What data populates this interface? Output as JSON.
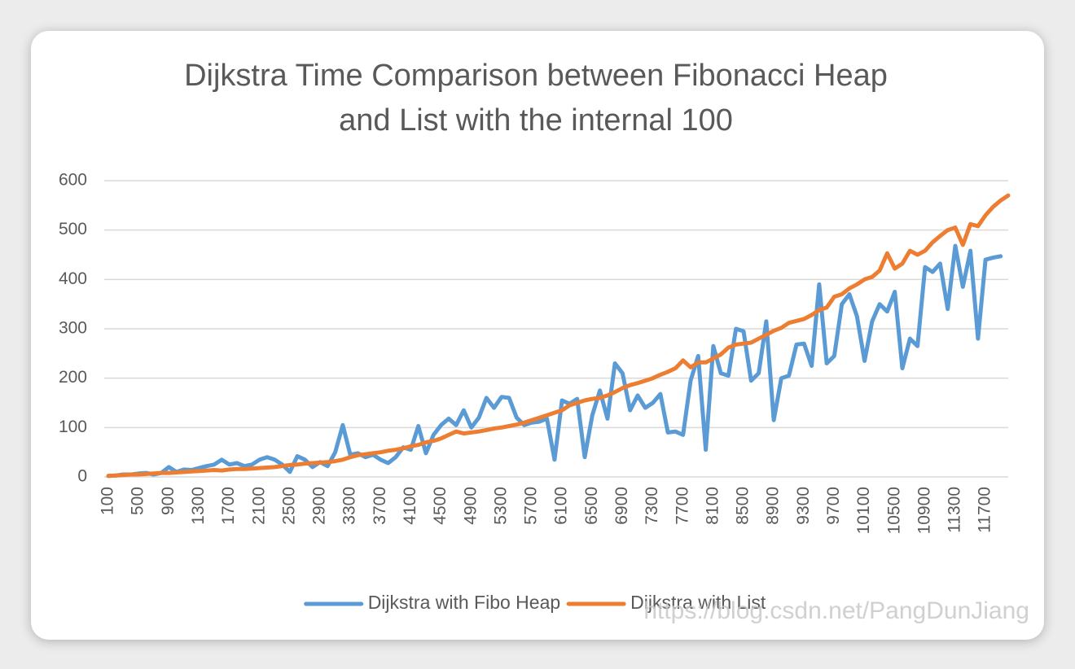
{
  "chart_data": {
    "type": "line",
    "title": [
      "Dijkstra Time Comparison between Fibonacci Heap",
      "and List with the internal 100"
    ],
    "categories": [
      "100",
      null,
      null,
      null,
      "500",
      null,
      null,
      null,
      "900",
      null,
      null,
      null,
      "1300",
      null,
      null,
      null,
      "1700",
      null,
      null,
      null,
      "2100",
      null,
      null,
      null,
      "2500",
      null,
      null,
      null,
      "2900",
      null,
      null,
      null,
      "3300",
      null,
      null,
      null,
      "3700",
      null,
      null,
      null,
      "4100",
      null,
      null,
      null,
      "4500",
      null,
      null,
      null,
      "4900",
      null,
      null,
      null,
      "5300",
      null,
      null,
      null,
      "5700",
      null,
      null,
      null,
      "6100",
      null,
      null,
      null,
      "6500",
      null,
      null,
      null,
      "6900",
      null,
      null,
      null,
      "7300",
      null,
      null,
      null,
      "7700",
      null,
      null,
      null,
      "8100",
      null,
      null,
      null,
      "8500",
      null,
      null,
      null,
      "8900",
      null,
      null,
      null,
      "9300",
      null,
      null,
      null,
      "9700",
      null,
      null,
      null,
      "10100",
      null,
      null,
      null,
      "10500",
      null,
      null,
      null,
      "10900",
      null,
      null,
      null,
      "11300",
      null,
      null,
      null,
      "11700",
      null,
      null,
      null
    ],
    "series": [
      {
        "name": "Dijkstra with Fibo Heap",
        "color": "#5b9bd5",
        "values": [
          2,
          3,
          5,
          5,
          7,
          8,
          5,
          8,
          20,
          10,
          15,
          14,
          18,
          22,
          25,
          35,
          25,
          28,
          22,
          25,
          35,
          40,
          35,
          25,
          10,
          42,
          35,
          20,
          30,
          22,
          50,
          105,
          45,
          48,
          40,
          45,
          35,
          28,
          40,
          60,
          55,
          103,
          48,
          85,
          105,
          118,
          105,
          135,
          100,
          120,
          160,
          140,
          162,
          160,
          120,
          105,
          110,
          112,
          118,
          35,
          155,
          148,
          158,
          40,
          125,
          175,
          118,
          230,
          210,
          135,
          165,
          140,
          150,
          168,
          90,
          92,
          85,
          195,
          245,
          55,
          265,
          210,
          205,
          300,
          295,
          195,
          210,
          315,
          115,
          200,
          205,
          268,
          270,
          225,
          390,
          230,
          245,
          350,
          370,
          325,
          235,
          315,
          350,
          335,
          375,
          220,
          280,
          265,
          425,
          415,
          432,
          340,
          468,
          385,
          458,
          280,
          440,
          444,
          447,
          null
        ]
      },
      {
        "name": "Dijkstra with List",
        "color": "#ed7d31",
        "values": [
          2,
          3,
          4,
          5,
          5,
          6,
          7,
          8,
          8,
          9,
          10,
          11,
          12,
          13,
          14,
          13,
          15,
          16,
          16,
          17,
          18,
          19,
          20,
          22,
          24,
          25,
          27,
          28,
          29,
          30,
          32,
          35,
          40,
          44,
          46,
          48,
          50,
          53,
          55,
          58,
          62,
          65,
          70,
          73,
          78,
          85,
          92,
          88,
          90,
          92,
          95,
          98,
          100,
          103,
          106,
          110,
          115,
          120,
          125,
          130,
          135,
          145,
          150,
          155,
          158,
          160,
          165,
          172,
          180,
          186,
          190,
          195,
          200,
          207,
          213,
          220,
          236,
          222,
          232,
          232,
          240,
          248,
          262,
          268,
          270,
          272,
          280,
          288,
          296,
          302,
          312,
          316,
          320,
          328,
          338,
          343,
          365,
          370,
          382,
          390,
          400,
          405,
          418,
          453,
          422,
          432,
          458,
          450,
          458,
          475,
          488,
          500,
          505,
          470,
          512,
          508,
          530,
          547,
          560,
          570
        ]
      }
    ],
    "ylim": [
      0,
      600
    ],
    "yticks": [
      0,
      100,
      200,
      300,
      400,
      500,
      600
    ],
    "grid": true,
    "legend": "bottom",
    "watermark": "https://blog.csdn.net/PangDunJiang"
  }
}
